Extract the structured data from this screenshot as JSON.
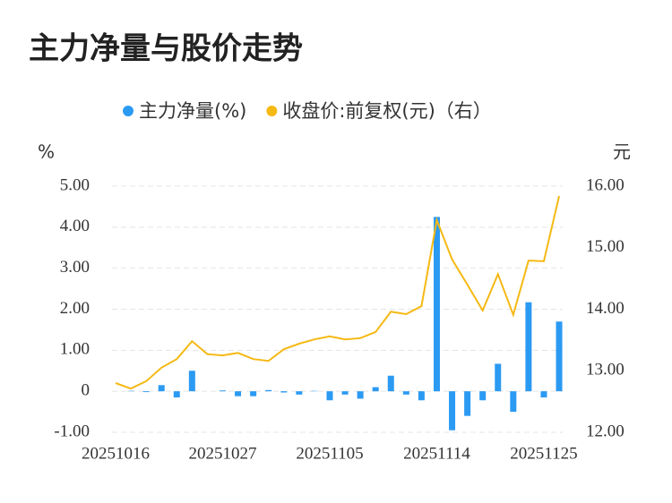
{
  "chart_data": {
    "type": "bar-line",
    "title": "主力净量与股价走势",
    "y_unit": "%",
    "y2_unit": "元",
    "categories": [
      "20251016",
      null,
      null,
      null,
      null,
      null,
      null,
      "20251027",
      null,
      null,
      null,
      null,
      null,
      null,
      "20251105",
      null,
      null,
      null,
      null,
      null,
      null,
      "20251114",
      null,
      null,
      null,
      null,
      null,
      null,
      "20251125",
      null
    ],
    "series": [
      {
        "name": "主力净量(%)",
        "type": "bar",
        "color": "#2b9af3",
        "values": [
          0.0,
          0.01,
          -0.02,
          0.15,
          -0.15,
          0.5,
          0.0,
          0.02,
          -0.12,
          -0.12,
          0.03,
          -0.03,
          -0.08,
          0.01,
          -0.22,
          -0.08,
          -0.18,
          0.1,
          0.38,
          -0.08,
          -0.22,
          4.25,
          -0.95,
          -0.6,
          -0.22,
          0.67,
          -0.5,
          2.17,
          -0.15,
          1.7
        ]
      },
      {
        "name": "收盘价:前复权(元)（右）",
        "type": "line",
        "axis": "y2",
        "color": "#f5b914",
        "values": [
          12.8,
          12.71,
          12.83,
          13.05,
          13.19,
          13.48,
          13.27,
          13.25,
          13.29,
          13.19,
          13.16,
          13.35,
          13.44,
          13.51,
          13.56,
          13.51,
          13.53,
          13.63,
          13.96,
          13.92,
          14.05,
          15.45,
          14.81,
          14.4,
          13.98,
          14.57,
          13.91,
          14.79,
          14.78,
          15.84
        ]
      }
    ],
    "ylim": [
      -1,
      5
    ],
    "yticks": [
      {
        "value": -1,
        "label": "-1.00"
      },
      0,
      {
        "value": 1,
        "label": "1.00"
      },
      {
        "value": 2,
        "label": "2.00"
      },
      {
        "value": 3,
        "label": "3.00"
      },
      {
        "value": 4,
        "label": "4.00"
      },
      {
        "value": 5,
        "label": "5.00"
      }
    ],
    "y2lim": [
      12,
      16
    ],
    "y2ticks": [
      {
        "value": 12,
        "label": "12.00"
      },
      {
        "value": 13,
        "label": "13.00"
      },
      {
        "value": 14,
        "label": "14.00"
      },
      {
        "value": 15,
        "label": "15.00"
      },
      {
        "value": 16,
        "label": "16.00"
      }
    ],
    "grid": true
  }
}
